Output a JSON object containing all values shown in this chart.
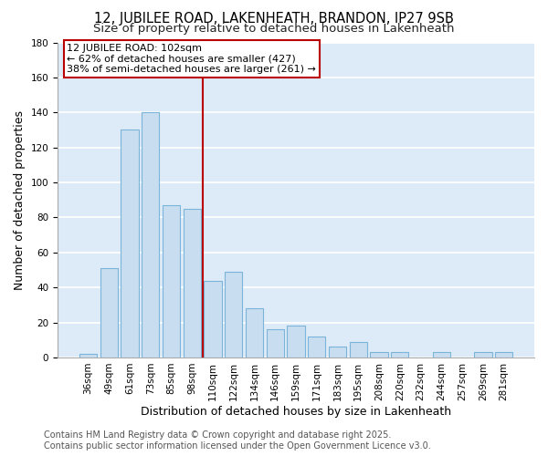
{
  "title": "12, JUBILEE ROAD, LAKENHEATH, BRANDON, IP27 9SB",
  "subtitle": "Size of property relative to detached houses in Lakenheath",
  "xlabel": "Distribution of detached houses by size in Lakenheath",
  "ylabel": "Number of detached properties",
  "categories": [
    "36sqm",
    "49sqm",
    "61sqm",
    "73sqm",
    "85sqm",
    "98sqm",
    "110sqm",
    "122sqm",
    "134sqm",
    "146sqm",
    "159sqm",
    "171sqm",
    "183sqm",
    "195sqm",
    "208sqm",
    "220sqm",
    "232sqm",
    "244sqm",
    "257sqm",
    "269sqm",
    "281sqm"
  ],
  "values": [
    2,
    51,
    130,
    140,
    87,
    85,
    44,
    49,
    28,
    16,
    18,
    12,
    6,
    9,
    3,
    3,
    0,
    3,
    0,
    3,
    3
  ],
  "bar_color": "#c9ddf0",
  "bar_edge_color": "#7ab4d8",
  "ref_line_x": 5.5,
  "ref_line_color": "#bb0000",
  "annotation_line1": "12 JUBILEE ROAD: 102sqm",
  "annotation_line2": "← 62% of detached houses are smaller (427)",
  "annotation_line3": "38% of semi-detached houses are larger (261) →",
  "ylim": [
    0,
    180
  ],
  "yticks": [
    0,
    20,
    40,
    60,
    80,
    100,
    120,
    140,
    160,
    180
  ],
  "footer1": "Contains HM Land Registry data © Crown copyright and database right 2025.",
  "footer2": "Contains public sector information licensed under the Open Government Licence v3.0.",
  "bg_color": "#ddeaf8",
  "grid_color": "#ffffff",
  "fig_bg_color": "#ffffff",
  "title_fontsize": 10.5,
  "subtitle_fontsize": 9.5,
  "axis_label_fontsize": 9,
  "tick_fontsize": 7.5,
  "annotation_fontsize": 8,
  "footer_fontsize": 7
}
